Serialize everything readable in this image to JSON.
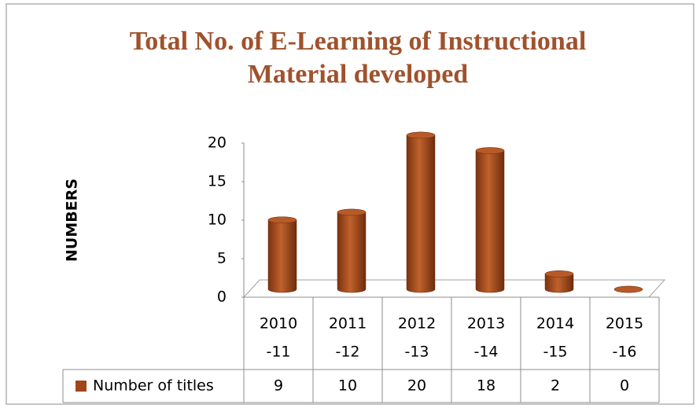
{
  "chart_data": {
    "type": "bar",
    "title": [
      "Total No. of E-Learning of Instructional",
      "Material developed"
    ],
    "y_label": "NUMBERS",
    "categories": [
      [
        "2010",
        "-11"
      ],
      [
        "2011",
        "-12"
      ],
      [
        "2012",
        "-13"
      ],
      [
        "2013",
        "-14"
      ],
      [
        "2014",
        "-15"
      ],
      [
        "2015",
        "-16"
      ]
    ],
    "series": [
      {
        "name": "Number of titles",
        "color": "#a0461b",
        "values": [
          9,
          10,
          20,
          18,
          2,
          0
        ]
      }
    ],
    "ylim": [
      0,
      20
    ],
    "yticks": [
      0,
      5,
      10,
      15,
      20
    ],
    "grid": false
  }
}
